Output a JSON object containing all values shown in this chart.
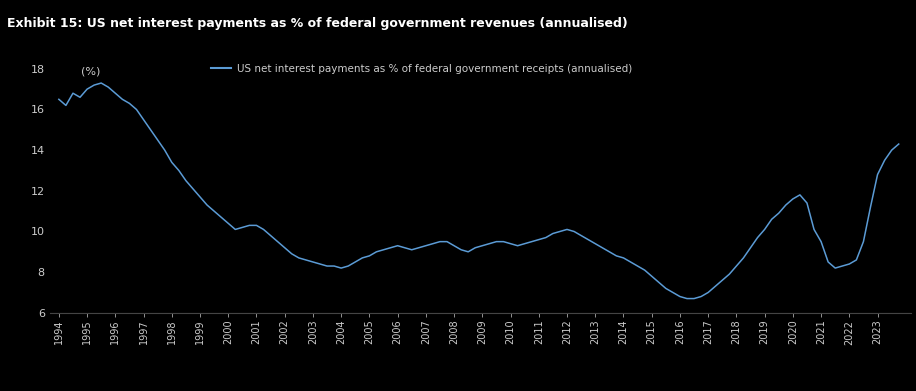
{
  "title": "Exhibit 15: US net interest payments as % of federal government revenues (annualised)",
  "legend_label": "US net interest payments as % of federal government receipts (annualised)",
  "ylabel": "(%)",
  "background_color": "#000000",
  "title_bg_color": "#1a1a1a",
  "line_color": "#5b9bd5",
  "text_color": "#ffffff",
  "axis_text_color": "#cccccc",
  "ylim": [
    6,
    18.5
  ],
  "yticks": [
    6,
    8,
    10,
    12,
    14,
    16,
    18
  ],
  "x_years": [
    1994,
    1995,
    1996,
    1997,
    1998,
    1999,
    2000,
    2001,
    2002,
    2003,
    2004,
    2005,
    2006,
    2007,
    2008,
    2009,
    2010,
    2011,
    2012,
    2013,
    2014,
    2015,
    2016,
    2017,
    2018,
    2019,
    2020,
    2021,
    2022,
    2023
  ],
  "data_x": [
    1994.0,
    1994.25,
    1994.5,
    1994.75,
    1995.0,
    1995.25,
    1995.5,
    1995.75,
    1996.0,
    1996.25,
    1996.5,
    1996.75,
    1997.0,
    1997.25,
    1997.5,
    1997.75,
    1998.0,
    1998.25,
    1998.5,
    1998.75,
    1999.0,
    1999.25,
    1999.5,
    1999.75,
    2000.0,
    2000.25,
    2000.5,
    2000.75,
    2001.0,
    2001.25,
    2001.5,
    2001.75,
    2002.0,
    2002.25,
    2002.5,
    2002.75,
    2003.0,
    2003.25,
    2003.5,
    2003.75,
    2004.0,
    2004.25,
    2004.5,
    2004.75,
    2005.0,
    2005.25,
    2005.5,
    2005.75,
    2006.0,
    2006.25,
    2006.5,
    2006.75,
    2007.0,
    2007.25,
    2007.5,
    2007.75,
    2008.0,
    2008.25,
    2008.5,
    2008.75,
    2009.0,
    2009.25,
    2009.5,
    2009.75,
    2010.0,
    2010.25,
    2010.5,
    2010.75,
    2011.0,
    2011.25,
    2011.5,
    2011.75,
    2012.0,
    2012.25,
    2012.5,
    2012.75,
    2013.0,
    2013.25,
    2013.5,
    2013.75,
    2014.0,
    2014.25,
    2014.5,
    2014.75,
    2015.0,
    2015.25,
    2015.5,
    2015.75,
    2016.0,
    2016.25,
    2016.5,
    2016.75,
    2017.0,
    2017.25,
    2017.5,
    2017.75,
    2018.0,
    2018.25,
    2018.5,
    2018.75,
    2019.0,
    2019.25,
    2019.5,
    2019.75,
    2020.0,
    2020.25,
    2020.5,
    2020.75,
    2021.0,
    2021.25,
    2021.5,
    2021.75,
    2022.0,
    2022.25,
    2022.5,
    2022.75,
    2023.0,
    2023.25,
    2023.5,
    2023.75
  ],
  "data_y": [
    16.5,
    16.2,
    16.8,
    16.6,
    17.0,
    17.2,
    17.3,
    17.1,
    16.8,
    16.5,
    16.3,
    16.0,
    15.5,
    15.0,
    14.5,
    14.0,
    13.4,
    13.0,
    12.5,
    12.1,
    11.7,
    11.3,
    11.0,
    10.7,
    10.4,
    10.1,
    10.2,
    10.3,
    10.3,
    10.1,
    9.8,
    9.5,
    9.2,
    8.9,
    8.7,
    8.6,
    8.5,
    8.4,
    8.3,
    8.3,
    8.2,
    8.3,
    8.5,
    8.7,
    8.8,
    9.0,
    9.1,
    9.2,
    9.3,
    9.2,
    9.1,
    9.2,
    9.3,
    9.4,
    9.5,
    9.5,
    9.3,
    9.1,
    9.0,
    9.2,
    9.3,
    9.4,
    9.5,
    9.5,
    9.4,
    9.3,
    9.4,
    9.5,
    9.6,
    9.7,
    9.9,
    10.0,
    10.1,
    10.0,
    9.8,
    9.6,
    9.4,
    9.2,
    9.0,
    8.8,
    8.7,
    8.5,
    8.3,
    8.1,
    7.8,
    7.5,
    7.2,
    7.0,
    6.8,
    6.7,
    6.7,
    6.8,
    7.0,
    7.3,
    7.6,
    7.9,
    8.3,
    8.7,
    9.2,
    9.7,
    10.1,
    10.6,
    10.9,
    11.3,
    11.6,
    11.8,
    11.4,
    10.1,
    9.5,
    8.5,
    8.2,
    8.3,
    8.4,
    8.6,
    9.5,
    11.2,
    12.8,
    13.5,
    14.0,
    14.3
  ]
}
